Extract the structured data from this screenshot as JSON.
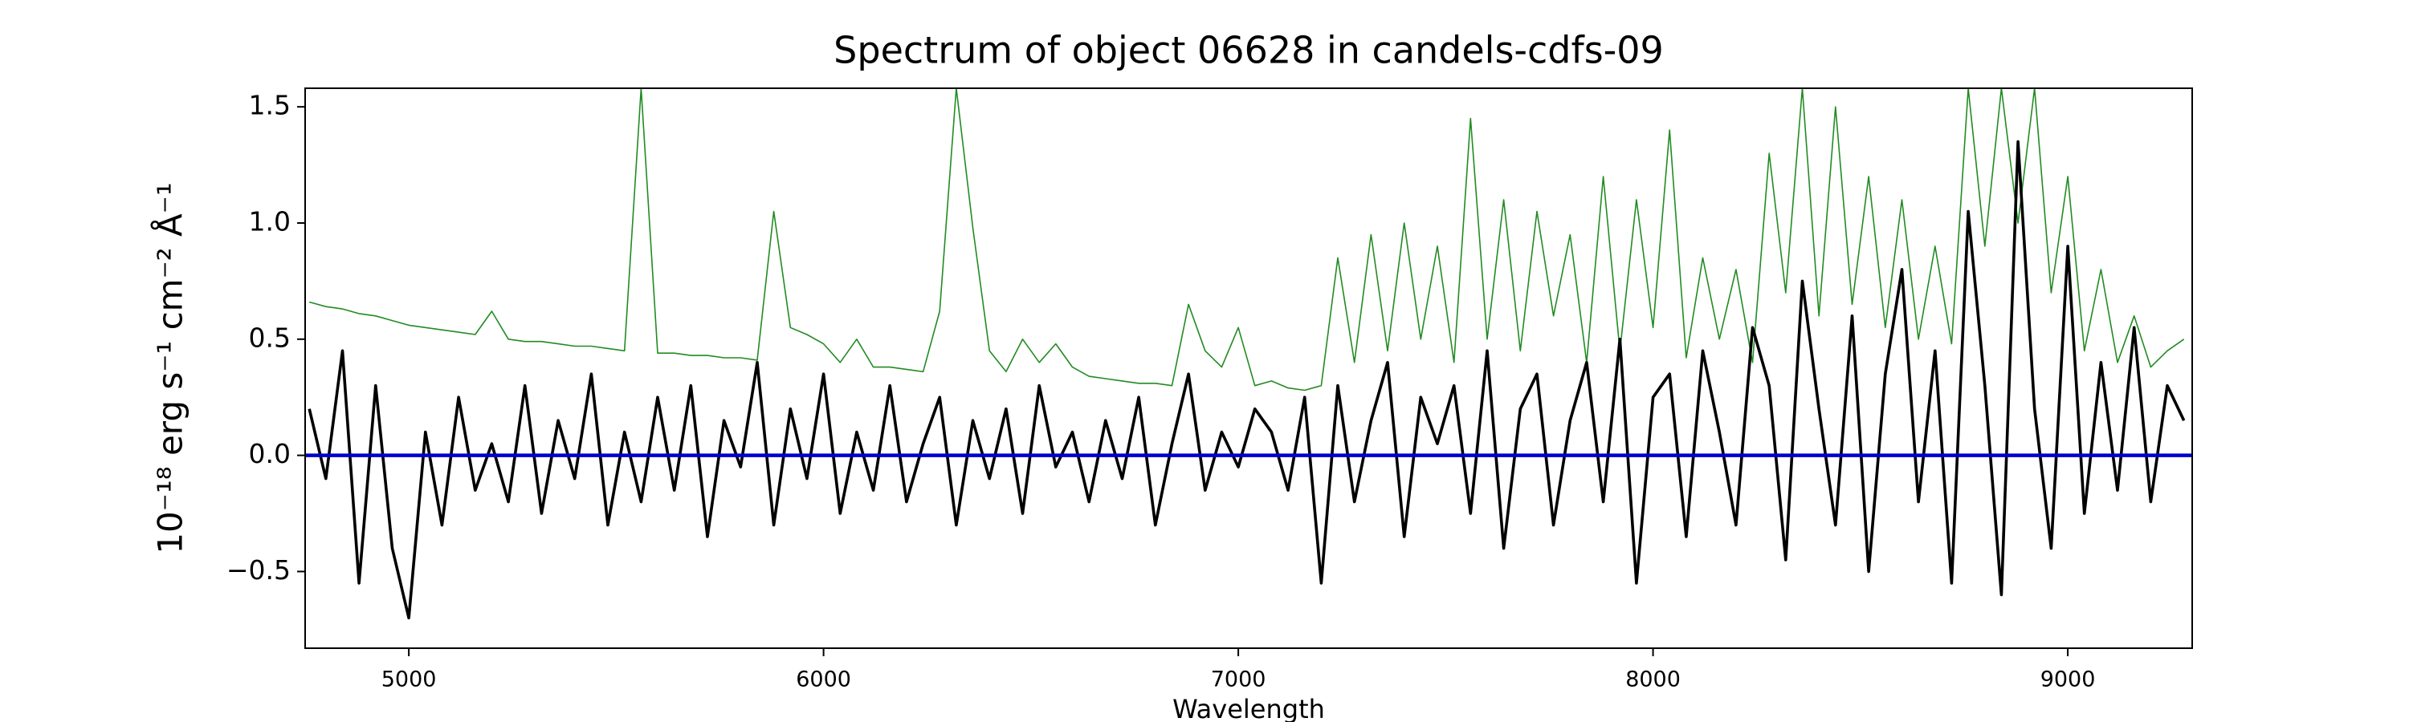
{
  "chart_data": {
    "type": "line",
    "title": "Spectrum of object 06628 in candels-cdfs-09",
    "xlabel": "Wavelength",
    "ylabel": "10⁻¹⁸ erg s⁻¹ cm⁻² Å⁻¹",
    "x": [
      4760,
      4800,
      4840,
      4880,
      4920,
      4960,
      5000,
      5040,
      5080,
      5120,
      5160,
      5200,
      5240,
      5280,
      5320,
      5360,
      5400,
      5440,
      5480,
      5520,
      5560,
      5600,
      5640,
      5680,
      5720,
      5760,
      5800,
      5840,
      5880,
      5920,
      5960,
      6000,
      6040,
      6080,
      6120,
      6160,
      6200,
      6240,
      6280,
      6320,
      6360,
      6400,
      6440,
      6480,
      6520,
      6560,
      6600,
      6640,
      6680,
      6720,
      6760,
      6800,
      6840,
      6880,
      6920,
      6960,
      7000,
      7040,
      7080,
      7120,
      7160,
      7200,
      7240,
      7280,
      7320,
      7360,
      7400,
      7440,
      7480,
      7520,
      7560,
      7600,
      7640,
      7680,
      7720,
      7760,
      7800,
      7840,
      7880,
      7920,
      7960,
      8000,
      8040,
      8080,
      8120,
      8160,
      8200,
      8240,
      8280,
      8320,
      8360,
      8400,
      8440,
      8480,
      8520,
      8560,
      8600,
      8640,
      8680,
      8720,
      8760,
      8800,
      8840,
      8880,
      8920,
      8960,
      9000,
      9040,
      9080,
      9120,
      9160,
      9200,
      9240,
      9280
    ],
    "series": [
      {
        "color": "#228b22",
        "values": [
          0.66,
          0.64,
          0.63,
          0.61,
          0.6,
          0.58,
          0.56,
          0.55,
          0.54,
          0.53,
          0.52,
          0.62,
          0.5,
          0.49,
          0.49,
          0.48,
          0.47,
          0.47,
          0.46,
          0.45,
          1.58,
          0.44,
          0.44,
          0.43,
          0.43,
          0.42,
          0.42,
          0.41,
          1.05,
          0.55,
          0.52,
          0.48,
          0.4,
          0.5,
          0.38,
          0.38,
          0.37,
          0.36,
          0.62,
          1.58,
          0.98,
          0.45,
          0.36,
          0.5,
          0.4,
          0.48,
          0.38,
          0.34,
          0.33,
          0.32,
          0.31,
          0.31,
          0.3,
          0.65,
          0.45,
          0.38,
          0.55,
          0.3,
          0.32,
          0.29,
          0.28,
          0.3,
          0.85,
          0.4,
          0.95,
          0.45,
          1.0,
          0.5,
          0.9,
          0.4,
          1.45,
          0.5,
          1.1,
          0.45,
          1.05,
          0.6,
          0.95,
          0.4,
          1.2,
          0.45,
          1.1,
          0.55,
          1.4,
          0.42,
          0.85,
          0.5,
          0.8,
          0.4,
          1.3,
          0.7,
          1.58,
          0.6,
          1.5,
          0.65,
          1.2,
          0.55,
          1.1,
          0.5,
          0.9,
          0.48,
          1.58,
          0.9,
          1.58,
          1.0,
          1.58,
          0.7,
          1.2,
          0.45,
          0.8,
          0.4,
          0.6,
          0.38,
          0.45,
          0.5
        ]
      },
      {
        "color": "#000000",
        "values": [
          0.2,
          -0.1,
          0.45,
          -0.55,
          0.3,
          -0.4,
          -0.7,
          0.1,
          -0.3,
          0.25,
          -0.15,
          0.05,
          -0.2,
          0.3,
          -0.25,
          0.15,
          -0.1,
          0.35,
          -0.3,
          0.1,
          -0.2,
          0.25,
          -0.15,
          0.3,
          -0.35,
          0.15,
          -0.05,
          0.4,
          -0.3,
          0.2,
          -0.1,
          0.35,
          -0.25,
          0.1,
          -0.15,
          0.3,
          -0.2,
          0.05,
          0.25,
          -0.3,
          0.15,
          -0.1,
          0.2,
          -0.25,
          0.3,
          -0.05,
          0.1,
          -0.2,
          0.15,
          -0.1,
          0.25,
          -0.3,
          0.05,
          0.35,
          -0.15,
          0.1,
          -0.05,
          0.2,
          0.1,
          -0.15,
          0.25,
          -0.55,
          0.3,
          -0.2,
          0.15,
          0.4,
          -0.35,
          0.25,
          0.05,
          0.3,
          -0.25,
          0.45,
          -0.4,
          0.2,
          0.35,
          -0.3,
          0.15,
          0.4,
          -0.2,
          0.5,
          -0.55,
          0.25,
          0.35,
          -0.35,
          0.45,
          0.1,
          -0.3,
          0.55,
          0.3,
          -0.45,
          0.75,
          0.2,
          -0.3,
          0.6,
          -0.5,
          0.35,
          0.8,
          -0.2,
          0.45,
          -0.55,
          1.05,
          0.3,
          -0.6,
          1.35,
          0.2,
          -0.4,
          0.9,
          -0.25,
          0.4,
          -0.15,
          0.55,
          -0.2,
          0.3,
          0.15
        ]
      },
      {
        "color": "#0000cc",
        "x": [
          4750,
          9300
        ],
        "values": [
          0,
          0
        ]
      }
    ],
    "xlim": [
      4750,
      9300
    ],
    "ylim": [
      -0.83,
      1.58
    ],
    "xticks": [
      5000,
      6000,
      7000,
      8000,
      9000
    ],
    "yticks": [
      {
        "value": -0.5,
        "label": "−0.5"
      },
      {
        "value": 0,
        "label": "0.0"
      },
      0.5,
      {
        "value": 1,
        "label": "1.0"
      },
      1.5
    ]
  }
}
